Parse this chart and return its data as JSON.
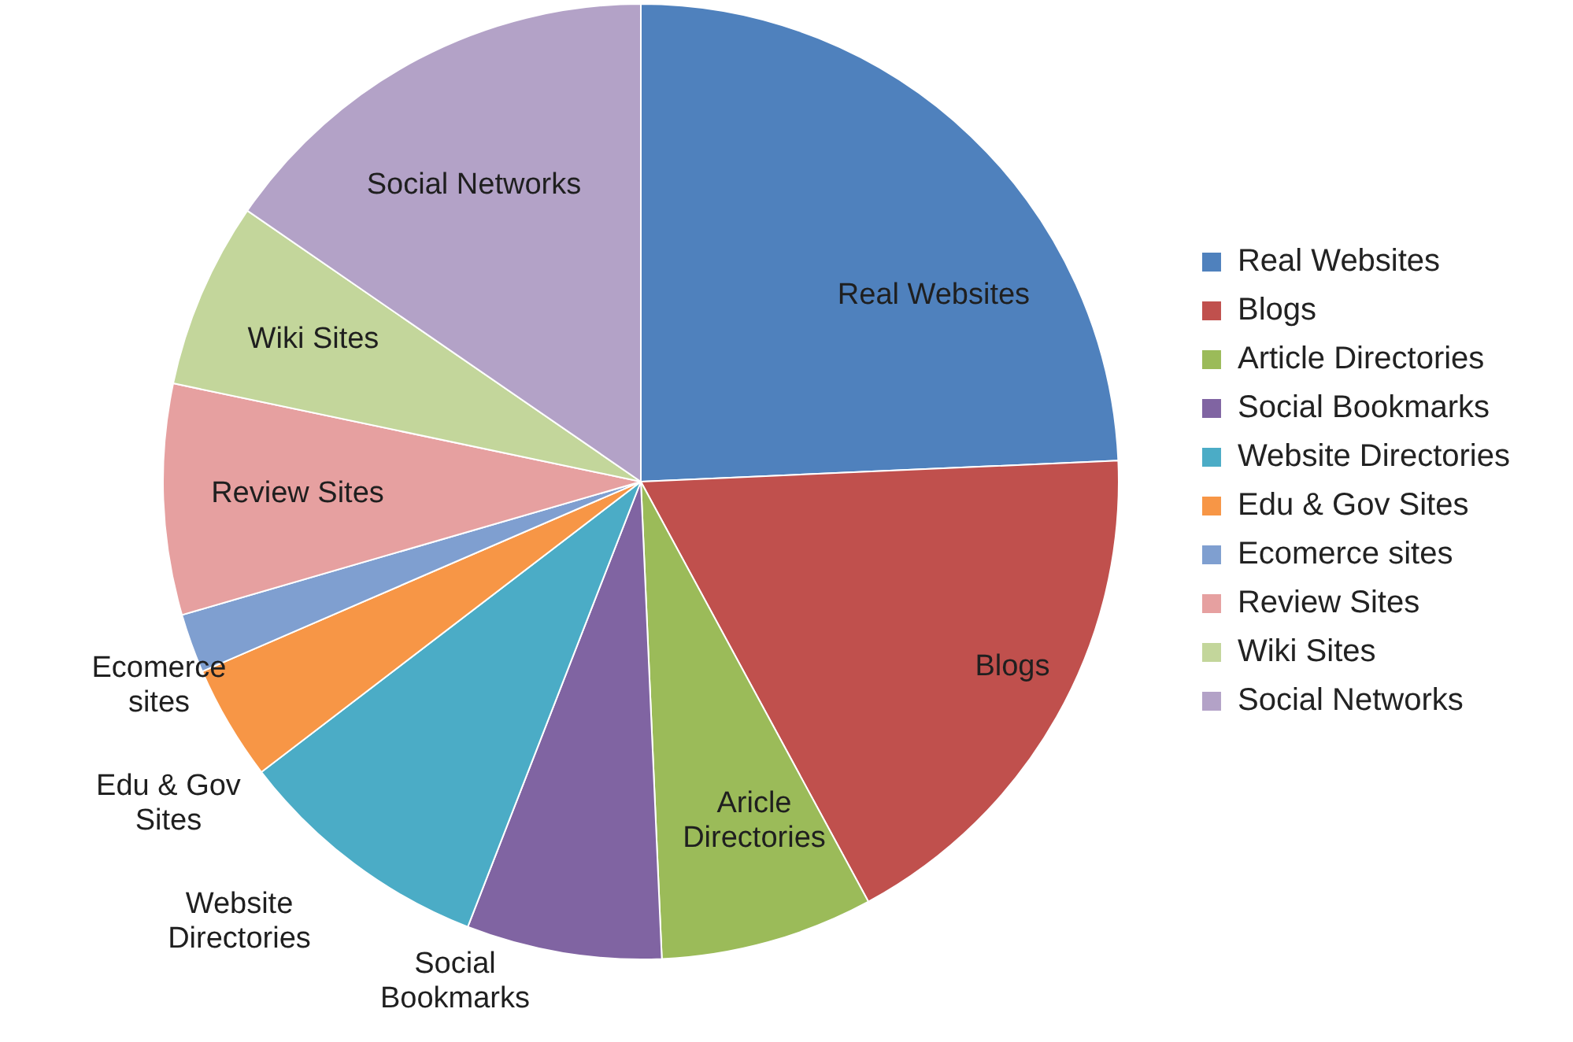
{
  "chart_data": {
    "type": "pie",
    "categories": [
      "Real Websites",
      "Blogs",
      "Article Directories",
      "Social Bookmarks",
      "Website Directories",
      "Edu & Gov Sites",
      "Ecomerce sites",
      "Review Sites",
      "Wiki Sites",
      "Social Networks"
    ],
    "values": [
      24.3,
      17.8,
      7.2,
      6.6,
      8.7,
      3.9,
      2.0,
      7.8,
      6.3,
      15.4
    ],
    "colors": [
      "#4f81bd",
      "#c0504d",
      "#9bbb59",
      "#8064a2",
      "#4bacc6",
      "#f79646",
      "#7f9fd0",
      "#e6a0a0",
      "#c3d69b",
      "#b3a2c7"
    ],
    "value_labels": [
      "Real Websites",
      "Blogs",
      "Aricle Directories",
      "Social Bookmarks",
      "Website Directories",
      "Edu & Gov Sites",
      "Ecomerce sites",
      "Review Sites",
      "Wiki Sites",
      "Social Networks"
    ],
    "legend": "right"
  }
}
